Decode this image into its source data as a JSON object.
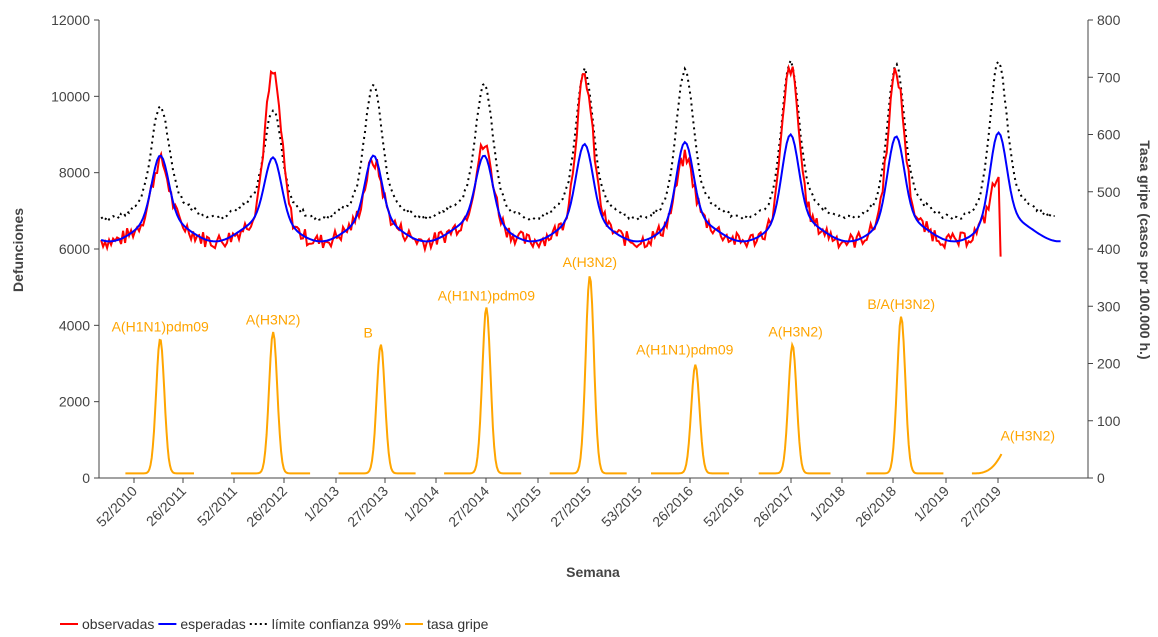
{
  "chart_data": {
    "type": "line",
    "title": "",
    "xlabel": "Semana",
    "ylabel_left": "Defunciones",
    "ylabel_right": "Tasa gripe (casos por 100.000 h.)",
    "ylim_left": [
      0,
      12000
    ],
    "ylim_right": [
      0,
      800
    ],
    "yticks_left": [
      0,
      2000,
      4000,
      6000,
      8000,
      10000,
      12000
    ],
    "yticks_right": [
      0,
      100,
      200,
      300,
      400,
      500,
      600,
      700,
      800
    ],
    "grid": false,
    "legend_position": "bottom-left",
    "x_tick_labels": [
      "52/2010",
      "26/2011",
      "52/2011",
      "26/2012",
      "1/2013",
      "27/2013",
      "1/2014",
      "27/2014",
      "1/2015",
      "27/2015",
      "53/2015",
      "26/2016",
      "52/2016",
      "26/2017",
      "1/2018",
      "26/2018",
      "1/2019",
      "27/2019"
    ],
    "seasons": [
      {
        "start": 2010.67,
        "end": 2011.25,
        "peak_time": 2011.03,
        "observed_peak": 8300,
        "expected_peak": 8450,
        "limit_peak": 9850,
        "flu_start": 2010.7,
        "flu_peak_time": 2011.03,
        "flu_peak": 243,
        "flu_end": 2011.35
      },
      {
        "start": 2011.58,
        "end": 2012.25,
        "peak_time": 2012.1,
        "observed_peak": 10600,
        "expected_peak": 8400,
        "limit_peak": 9650,
        "flu_start": 2011.7,
        "flu_peak_time": 2012.1,
        "flu_peak": 255,
        "flu_end": 2012.45
      },
      {
        "start": 2012.58,
        "end": 2013.25,
        "peak_time": 2013.05,
        "observed_peak": 8300,
        "expected_peak": 8450,
        "limit_peak": 11000,
        "flu_start": 2012.72,
        "flu_peak_time": 2013.12,
        "flu_peak": 233,
        "flu_end": 2013.45
      },
      {
        "start": 2013.6,
        "end": 2014.25,
        "peak_time": 2014.1,
        "observed_peak": 8700,
        "expected_peak": 8450,
        "limit_peak": 11000,
        "flu_start": 2013.72,
        "flu_peak_time": 2014.12,
        "flu_peak": 298,
        "flu_end": 2014.45
      },
      {
        "start": 2014.58,
        "end": 2015.25,
        "peak_time": 2015.05,
        "observed_peak": 10500,
        "expected_peak": 8750,
        "limit_peak": 11400,
        "flu_start": 2014.72,
        "flu_peak_time": 2015.1,
        "flu_peak": 353,
        "flu_end": 2015.45
      },
      {
        "start": 2015.55,
        "end": 2016.25,
        "peak_time": 2016.0,
        "observed_peak": 8400,
        "expected_peak": 8800,
        "limit_peak": 11300,
        "flu_start": 2015.68,
        "flu_peak_time": 2016.1,
        "flu_peak": 198,
        "flu_end": 2016.42
      },
      {
        "start": 2016.55,
        "end": 2017.25,
        "peak_time": 2017.0,
        "observed_peak": 10750,
        "expected_peak": 9000,
        "limit_peak": 11650,
        "flu_start": 2016.7,
        "flu_peak_time": 2017.02,
        "flu_peak": 233,
        "flu_end": 2017.38
      },
      {
        "start": 2017.58,
        "end": 2018.25,
        "peak_time": 2018.0,
        "observed_peak": 10600,
        "expected_peak": 8950,
        "limit_peak": 11450,
        "flu_start": 2017.72,
        "flu_peak_time": 2018.05,
        "flu_peak": 282,
        "flu_end": 2018.45
      },
      {
        "start": 2018.6,
        "end": 2019.4,
        "peak_time": 2018.97,
        "observed_peak": 7850,
        "expected_peak": 9050,
        "limit_peak": 11500,
        "flu_start": 2018.72,
        "flu_peak_time": 2018.98,
        "flu_peak": 42,
        "flu_end": 2019.0
      }
    ],
    "observed_end": {
      "x": 2019.0,
      "y": 5800
    },
    "series": [
      {
        "name": "observadas",
        "color": "#ff0000",
        "style": "solid"
      },
      {
        "name": "esperadas",
        "color": "#0000ff",
        "style": "solid"
      },
      {
        "name": "límite confianza 99%",
        "color": "#000000",
        "style": "dotted"
      },
      {
        "name": "tasa gripe",
        "color": "#ffa500",
        "style": "solid"
      }
    ],
    "annotations": [
      {
        "text": "A(H1N1)pdm09",
        "x": 2011.03,
        "y": 245
      },
      {
        "text": "A(H3N2)",
        "x": 2012.1,
        "y": 258
      },
      {
        "text": "B",
        "x": 2013.0,
        "y": 235
      },
      {
        "text": "A(H1N1)pdm09",
        "x": 2014.12,
        "y": 300
      },
      {
        "text": "A(H3N2)",
        "x": 2015.1,
        "y": 358
      },
      {
        "text": "A(H1N1)pdm09",
        "x": 2016.0,
        "y": 205
      },
      {
        "text": "A(H3N2)",
        "x": 2017.05,
        "y": 237
      },
      {
        "text": "B/A(H3N2)",
        "x": 2018.05,
        "y": 285
      },
      {
        "text": "A(H3N2)",
        "x": 2019.25,
        "y": 55
      }
    ]
  }
}
